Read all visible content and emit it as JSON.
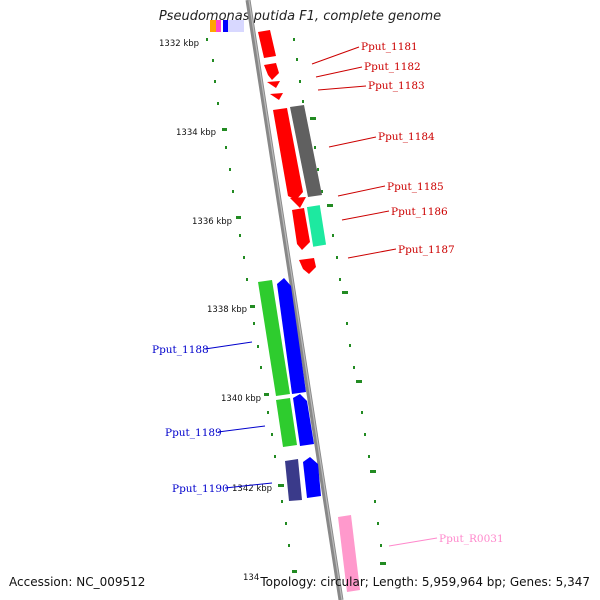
{
  "title": "Pseudomonas putida F1, complete genome",
  "footer": {
    "accession": "Accession: NC_009512",
    "summary": "Topology: circular; Length: 5,959,964 bp; Genes: 5,347"
  },
  "colors": {
    "red_gene": "#ff0000",
    "dark_gray_gene": "#606060",
    "teal_gene": "#1de9a0",
    "green_gene": "#2ecc2e",
    "blue_gene": "#0000ff",
    "navy_gene": "#3a3a8a",
    "pink_gene": "#ff99cc",
    "tick_green": "#228b22",
    "backbone": "#888888"
  },
  "scale_labels": [
    "1332 kbp",
    "1334 kbp",
    "1336 kbp",
    "1338 kbp",
    "1340 kbp",
    "1342 kbp",
    "134"
  ],
  "genes": [
    {
      "name": "Pput_1181",
      "color": "#cc0000"
    },
    {
      "name": "Pput_1182",
      "color": "#cc0000"
    },
    {
      "name": "Pput_1183",
      "color": "#cc0000"
    },
    {
      "name": "Pput_1184",
      "color": "#cc0000"
    },
    {
      "name": "Pput_1185",
      "color": "#cc0000"
    },
    {
      "name": "Pput_1186",
      "color": "#cc0000"
    },
    {
      "name": "Pput_1187",
      "color": "#cc0000"
    },
    {
      "name": "Pput_1188",
      "color": "#0000cc"
    },
    {
      "name": "Pput_1189",
      "color": "#0000cc"
    },
    {
      "name": "Pput_1190",
      "color": "#0000cc"
    },
    {
      "name": "Pput_R0031",
      "color": "#ff88cc"
    }
  ]
}
